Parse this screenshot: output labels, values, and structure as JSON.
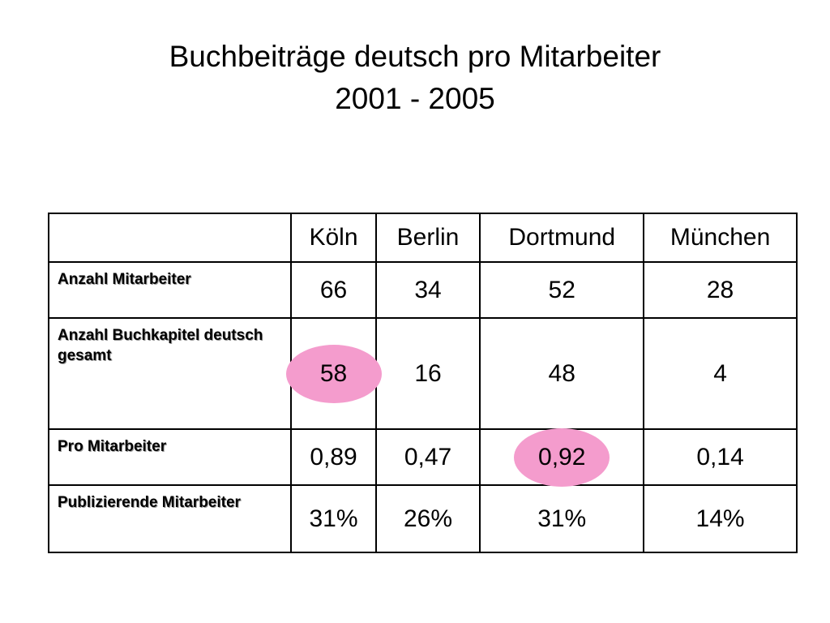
{
  "title": {
    "line1": "Buchbeiträge deutsch pro Mitarbeiter",
    "line2": "2001 - 2005"
  },
  "table": {
    "columns": [
      "",
      "Köln",
      "Berlin",
      "Dortmund",
      "München"
    ],
    "rows": [
      {
        "label": "Anzahl Mitarbeiter",
        "values": [
          "66",
          "34",
          "52",
          "28"
        ]
      },
      {
        "label": "Anzahl Buchkapitel deutsch gesamt",
        "values": [
          "58",
          "16",
          "48",
          "4"
        ],
        "highlighted": [
          "Köln"
        ]
      },
      {
        "label": "Pro Mitarbeiter",
        "values": [
          "0,89",
          "0,47",
          "0,92",
          "0,14"
        ],
        "highlighted": [
          "Dortmund"
        ]
      },
      {
        "label": "Publizierende Mitarbeiter",
        "values": [
          "31%",
          "26%",
          "31%",
          "14%"
        ]
      }
    ]
  },
  "colors": {
    "highlight": "#f49ccd",
    "border": "#000000",
    "text": "#000000",
    "background": "#ffffff"
  }
}
